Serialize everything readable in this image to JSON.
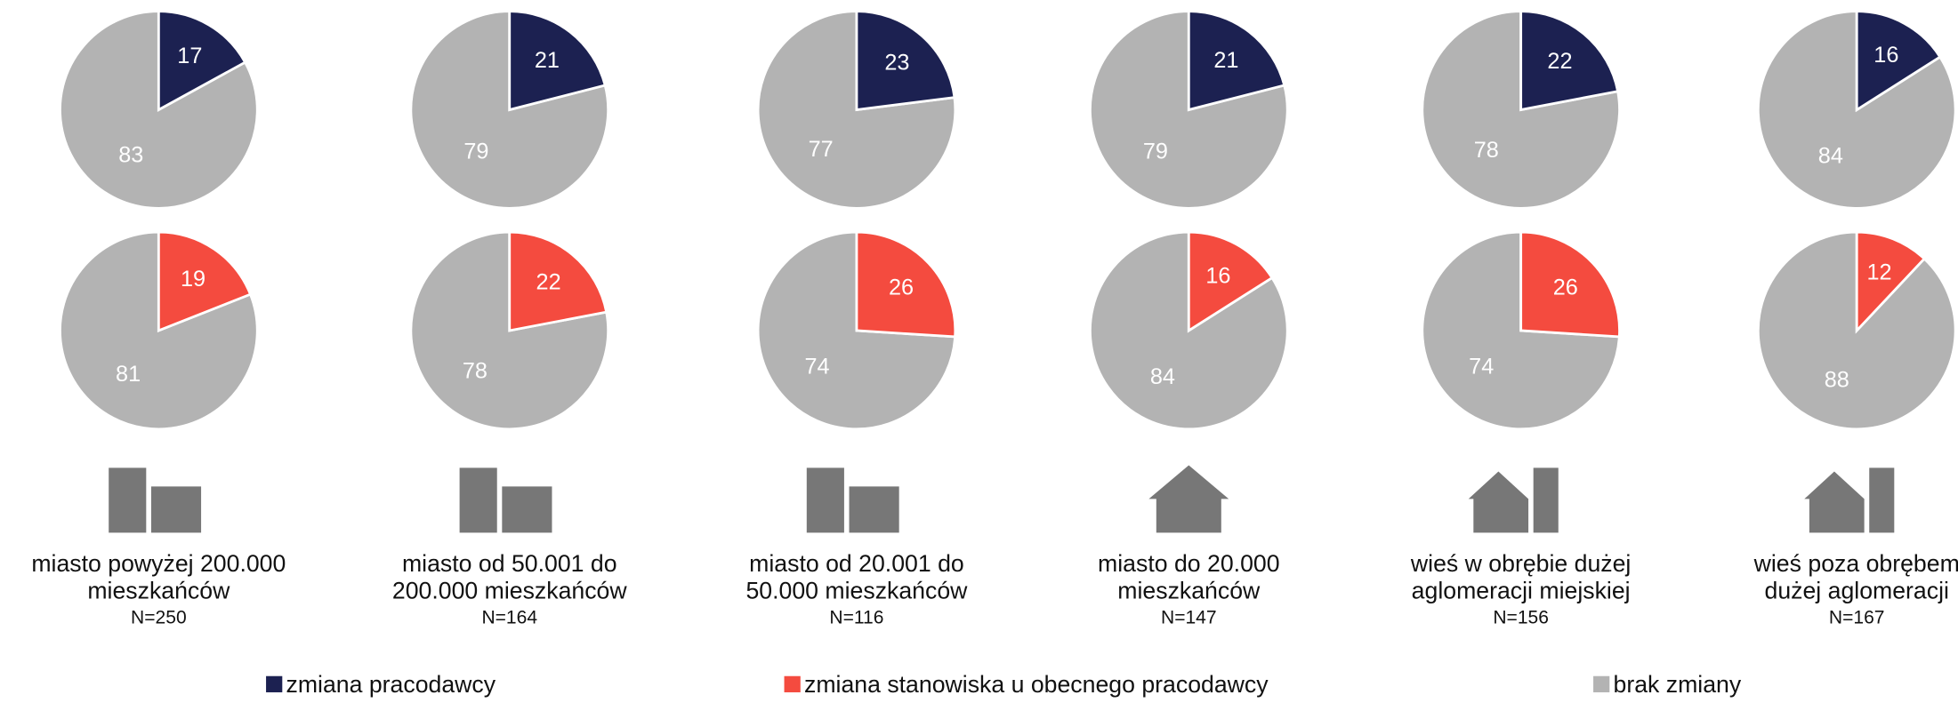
{
  "chart_data": {
    "type": "pie",
    "categories": [
      [
        "miasto powyżej 200.000",
        "mieszkańców"
      ],
      [
        "miasto od 50.001 do",
        "200.000 mieszkańców"
      ],
      [
        "miasto od 20.001 do",
        "50.000 mieszkańców"
      ],
      [
        "miasto do 20.000",
        "mieszkańców"
      ],
      [
        "wieś w obrębie dużej",
        "aglomeracji miejskiej"
      ],
      [
        "wieś poza obrębem",
        "dużej aglomeracji"
      ]
    ],
    "n_labels": [
      "N=250",
      "N=164",
      "N=116",
      "N=147",
      "N=156",
      "N=167"
    ],
    "series": [
      {
        "name": "zmiana pracodawcy",
        "color": "#1c2151",
        "values": [
          17,
          21,
          23,
          21,
          22,
          16
        ]
      },
      {
        "name": "zmiana stanowiska u obecnego pracodawcy",
        "color": "#f44b3f",
        "values": [
          19,
          22,
          26,
          16,
          26,
          12
        ]
      },
      {
        "name": "brak zmiany",
        "color": "#b3b3b3",
        "values": [
          [
            83,
            81
          ],
          [
            79,
            78
          ],
          [
            77,
            74
          ],
          [
            79,
            84
          ],
          [
            78,
            74
          ],
          [
            84,
            88
          ]
        ]
      }
    ]
  }
}
